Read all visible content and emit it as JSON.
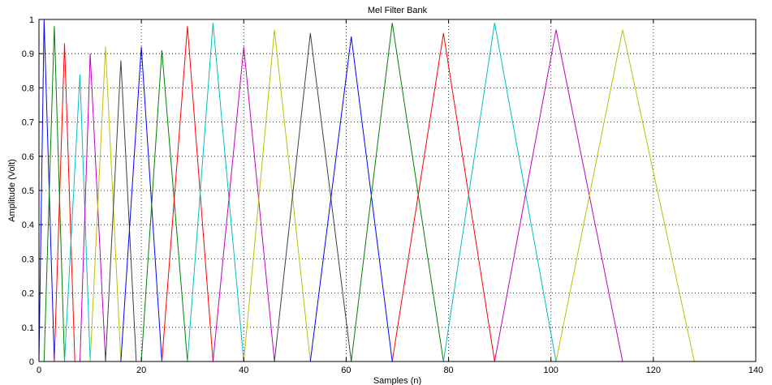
{
  "chart_data": {
    "type": "line",
    "title": "Mel Filter Bank",
    "xlabel": "Samples (n)",
    "ylabel": "Amplitude (Volt)",
    "xlim": [
      0,
      140
    ],
    "ylim": [
      0,
      1
    ],
    "x_ticks": [
      0,
      20,
      40,
      60,
      80,
      100,
      120,
      140
    ],
    "y_ticks": [
      0,
      0.1,
      0.2,
      0.3,
      0.4,
      0.5,
      0.6,
      0.7,
      0.8,
      0.9,
      1
    ],
    "x_tick_labels": [
      "0",
      "20",
      "40",
      "60",
      "80",
      "100",
      "120",
      "140"
    ],
    "y_tick_labels": [
      "0",
      "0.1",
      "0.2",
      "0.3",
      "0.4",
      "0.5",
      "0.6",
      "0.7",
      "0.8",
      "0.9",
      "1"
    ],
    "grid": true,
    "grid_style": "dotted",
    "legend": "none",
    "series": [
      {
        "color": "#0000ff",
        "x": [
          0,
          1,
          3
        ],
        "y": [
          0,
          1,
          0
        ]
      },
      {
        "color": "#008000",
        "x": [
          1,
          3,
          5
        ],
        "y": [
          0,
          0.98,
          0
        ]
      },
      {
        "color": "#ff0000",
        "x": [
          3,
          5,
          7
        ],
        "y": [
          0,
          0.93,
          0
        ]
      },
      {
        "color": "#00bfbf",
        "x": [
          5,
          8,
          10
        ],
        "y": [
          0,
          0.84,
          0
        ]
      },
      {
        "color": "#bf00bf",
        "x": [
          8,
          10,
          13
        ],
        "y": [
          0,
          0.9,
          0
        ]
      },
      {
        "color": "#bfbf00",
        "x": [
          10,
          13,
          16
        ],
        "y": [
          0,
          0.92,
          0
        ]
      },
      {
        "color": "#404040",
        "x": [
          13,
          16,
          19
        ],
        "y": [
          0,
          0.88,
          0
        ]
      },
      {
        "color": "#0000ff",
        "x": [
          16,
          20,
          24
        ],
        "y": [
          0,
          0.92,
          0
        ]
      },
      {
        "color": "#008000",
        "x": [
          20,
          24,
          29
        ],
        "y": [
          0,
          0.91,
          0
        ]
      },
      {
        "color": "#ff0000",
        "x": [
          24,
          29,
          34
        ],
        "y": [
          0,
          0.98,
          0
        ]
      },
      {
        "color": "#00bfbf",
        "x": [
          29,
          34,
          40
        ],
        "y": [
          0,
          0.99,
          0
        ]
      },
      {
        "color": "#bf00bf",
        "x": [
          34,
          40,
          46
        ],
        "y": [
          0,
          0.92,
          0
        ]
      },
      {
        "color": "#bfbf00",
        "x": [
          40,
          46,
          53
        ],
        "y": [
          0,
          0.97,
          0
        ]
      },
      {
        "color": "#404040",
        "x": [
          46,
          53,
          61
        ],
        "y": [
          0,
          0.96,
          0
        ]
      },
      {
        "color": "#0000ff",
        "x": [
          53,
          61,
          69
        ],
        "y": [
          0,
          0.95,
          0
        ]
      },
      {
        "color": "#008000",
        "x": [
          61,
          69,
          79
        ],
        "y": [
          0,
          0.99,
          0
        ]
      },
      {
        "color": "#ff0000",
        "x": [
          69,
          79,
          89
        ],
        "y": [
          0,
          0.96,
          0
        ]
      },
      {
        "color": "#00bfbf",
        "x": [
          79,
          89,
          101
        ],
        "y": [
          0,
          0.99,
          0
        ]
      },
      {
        "color": "#bf00bf",
        "x": [
          89,
          101,
          114
        ],
        "y": [
          0,
          0.97,
          0
        ]
      },
      {
        "color": "#bfbf00",
        "x": [
          101,
          114,
          128
        ],
        "y": [
          0,
          0.97,
          0
        ]
      }
    ]
  }
}
